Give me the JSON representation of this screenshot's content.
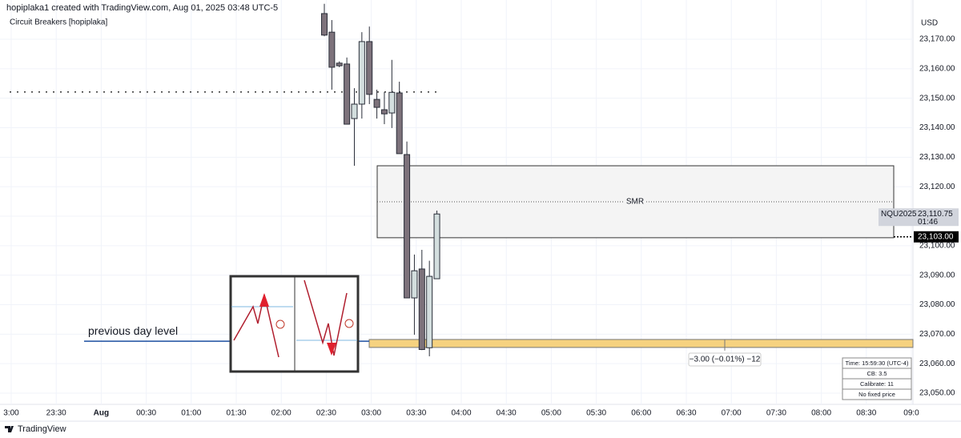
{
  "header": {
    "attribution": "hopiplaka1 created with TradingView.com, Aug 01, 2025 03:48 UTC-5",
    "indicator": "Circuit Breakers [hopiplaka]",
    "footer": "TradingView"
  },
  "chart_data": {
    "type": "candlestick",
    "currency": "USD",
    "open": [
      23178.7,
      23172.4,
      23161.9,
      23161.6,
      23143.1,
      23148.0,
      23169.2,
      23149.6,
      23146.1,
      23145.0,
      23151.8,
      23130.9,
      23082.3,
      23092.1,
      23065.4,
      23088.8
    ],
    "high": [
      23182.0,
      23176.5,
      23162.5,
      23163.8,
      23153.4,
      23172.4,
      23174.3,
      23152.9,
      23152.1,
      23163.0,
      23155.6,
      23135.3,
      23097.0,
      23098.6,
      23094.9,
      23111.9
    ],
    "low": [
      23171.0,
      23152.9,
      23160.5,
      23141.2,
      23127.1,
      23143.1,
      23148.0,
      23143.1,
      23141.2,
      23139.9,
      23131.2,
      23082.3,
      23069.8,
      23064.6,
      23062.5,
      23088.8
    ],
    "close": [
      23171.4,
      23160.5,
      23161.0,
      23141.2,
      23148.0,
      23169.2,
      23151.3,
      23146.9,
      23144.7,
      23152.0,
      23131.2,
      23082.3,
      23091.5,
      23064.8,
      23089.6,
      23110.75
    ],
    "up_color": "#d3dede",
    "down_color": "#7d727b",
    "ylim": [
      23046.2,
      23183.3
    ],
    "yticks": [
      {
        "value": 23050,
        "label": "23,050.00"
      },
      {
        "value": 23060,
        "label": "23,060.00"
      },
      {
        "value": 23070,
        "label": "23,070.00"
      },
      {
        "value": 23080,
        "label": "23,080.00"
      },
      {
        "value": 23090,
        "label": "23,090.00"
      },
      {
        "value": 23100,
        "label": "23,100.00"
      },
      {
        "value": 23110,
        "label": "23,110.00"
      },
      {
        "value": 23120,
        "label": "23,120.00"
      },
      {
        "value": 23130,
        "label": "23,130.00"
      },
      {
        "value": 23140,
        "label": "23,140.00"
      },
      {
        "value": 23150,
        "label": "23,150.00"
      },
      {
        "value": 23160,
        "label": "23,160.00"
      },
      {
        "value": 23170,
        "label": "23,170.00"
      }
    ],
    "xticks": [
      "3:00",
      "23:30",
      "Aug",
      "00:30",
      "01:00",
      "01:30",
      "02:00",
      "02:30",
      "03:00",
      "03:30",
      "04:00",
      "04:30",
      "05:00",
      "05:30",
      "06:00",
      "06:30",
      "07:00",
      "07:30",
      "08:00",
      "08:30",
      "09:0"
    ],
    "grid": true,
    "levels": {
      "swing_level": 23152.1,
      "smr": {
        "label": "SMR",
        "top": 23127.1,
        "bottom": 23102.7,
        "mid": 23114.9
      },
      "last_price": {
        "symbol": "NQU2025",
        "value": 23110.75,
        "value_label": "23,110.75",
        "countdown": "01:46"
      },
      "price_line": {
        "value": 23103,
        "value_label": "23,103.00"
      },
      "previous_day_level": {
        "label": "previous day level",
        "value": 23067.6,
        "color": "#1d4fa0"
      },
      "zone": {
        "top": 23068.2,
        "bottom": 23065.5,
        "color": "#f6d27f"
      },
      "measure": {
        "label": "−3.00 (−0.01%) −12"
      }
    }
  },
  "info_table": [
    "Time: 15:59:30 (UTC-4)",
    "CB: 3.5",
    "Calibrate: 11",
    "No fixed price"
  ]
}
